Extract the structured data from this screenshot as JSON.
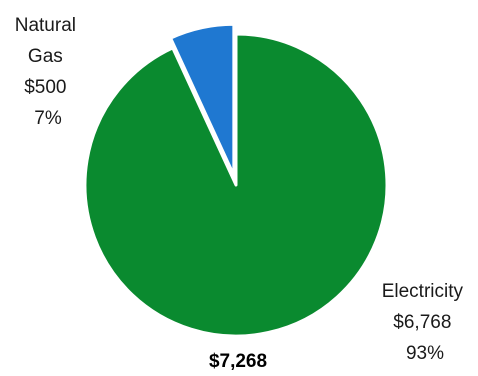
{
  "chart_data": {
    "type": "pie",
    "total_label": "$7,268",
    "slices": [
      {
        "name": "Electricity",
        "value": 6768,
        "value_label": "$6,768",
        "percent_label": "93%",
        "color": "#0a8a2f",
        "exploded": false
      },
      {
        "name": "Natural Gas",
        "name_lines": [
          "Natural",
          "Gas"
        ],
        "value": 500,
        "value_label": "$500",
        "percent_label": "7%",
        "color": "#1f78d1",
        "exploded": true
      }
    ]
  }
}
